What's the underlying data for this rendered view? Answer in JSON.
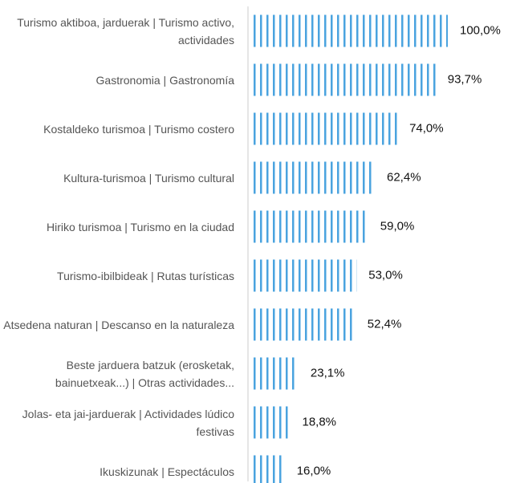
{
  "chart_data": {
    "type": "bar",
    "orientation": "horizontal",
    "categories": [
      "Turismo aktiboa, jarduerak | Turismo activo, actividades",
      "Gastronomia | Gastronomía",
      "Kostaldeko turismoa | Turismo costero",
      "Kultura-turismoa | Turismo cultural",
      "Hiriko turismoa | Turismo en la ciudad",
      "Turismo-ibilbideak | Rutas turísticas",
      "Atsedena naturan | Descanso en la naturaleza",
      "Beste jarduera batzuk (erosketak, bainuetxeak...) | Otras actividades...",
      "Jolas- eta jai-jarduerak | Actividades lúdico festivas",
      "Ikuskizunak | Espectáculos"
    ],
    "values": [
      100,
      93.7,
      74,
      62.4,
      59,
      53,
      52.4,
      23.1,
      18.8,
      16
    ],
    "value_labels": [
      "100,0%",
      "93,7%",
      "74,0%",
      "62,4%",
      "59,0%",
      "53,0%",
      "52,4%",
      "23,1%",
      "18,8%",
      "16,0%"
    ],
    "color": "#4aa3df",
    "xlim": [
      0,
      100
    ]
  }
}
